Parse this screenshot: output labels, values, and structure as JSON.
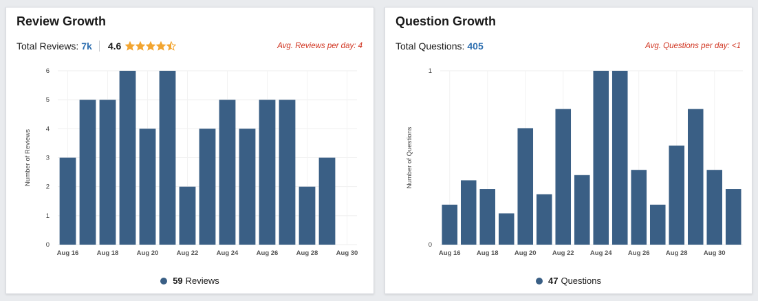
{
  "colors": {
    "bar": "#3a5f85",
    "accent_value": "#2e6fb0",
    "avg_note": "#d0331f",
    "star": "#f2a531",
    "grid": "#eeeeee"
  },
  "reviews": {
    "title": "Review Growth",
    "total_label": "Total Reviews:",
    "total_value": "7k",
    "rating": "4.6",
    "stars": 4.5,
    "avg_note": "Avg. Reviews per day: 4",
    "legend_count": "59",
    "legend_label": "Reviews"
  },
  "questions": {
    "title": "Question Growth",
    "total_label": "Total Questions:",
    "total_value": "405",
    "avg_note": "Avg. Questions per day: <1",
    "legend_count": "47",
    "legend_label": "Questions"
  },
  "chart_data": [
    {
      "type": "bar",
      "ylabel": "Number of Reviews",
      "xlabel": "",
      "ylim": [
        0,
        6
      ],
      "yticks": [
        0,
        1,
        2,
        3,
        4,
        5,
        6
      ],
      "grid": true,
      "x_ticks": [
        "Aug 16",
        "Aug 18",
        "Aug 20",
        "Aug 22",
        "Aug 24",
        "Aug 26",
        "Aug 28",
        "Aug 30"
      ],
      "categories": [
        "Aug 16",
        "Aug 17",
        "Aug 18",
        "Aug 19",
        "Aug 20",
        "Aug 21",
        "Aug 22",
        "Aug 23",
        "Aug 24",
        "Aug 25",
        "Aug 26",
        "Aug 27",
        "Aug 28",
        "Aug 29",
        "Aug 30"
      ],
      "values": [
        3,
        5,
        5,
        6,
        4,
        6,
        2,
        4,
        5,
        4,
        5,
        5,
        2,
        3,
        0
      ]
    },
    {
      "type": "bar",
      "ylabel": "Number of Questions",
      "xlabel": "",
      "ylim": [
        0,
        1
      ],
      "yticks": [
        0,
        1
      ],
      "grid": true,
      "x_ticks": [
        "Aug 16",
        "Aug 18",
        "Aug 20",
        "Aug 22",
        "Aug 24",
        "Aug 26",
        "Aug 28",
        "Aug 30"
      ],
      "categories": [
        "Aug 16",
        "Aug 17",
        "Aug 18",
        "Aug 19",
        "Aug 20",
        "Aug 21",
        "Aug 22",
        "Aug 23",
        "Aug 24",
        "Aug 25",
        "Aug 26",
        "Aug 27",
        "Aug 28",
        "Aug 29",
        "Aug 30",
        "Aug 31"
      ],
      "values": [
        0.23,
        0.37,
        0.32,
        0.18,
        0.67,
        0.29,
        0.78,
        0.4,
        1,
        1,
        0.43,
        0.23,
        0.57,
        0.78,
        0.43,
        0.32
      ]
    }
  ]
}
